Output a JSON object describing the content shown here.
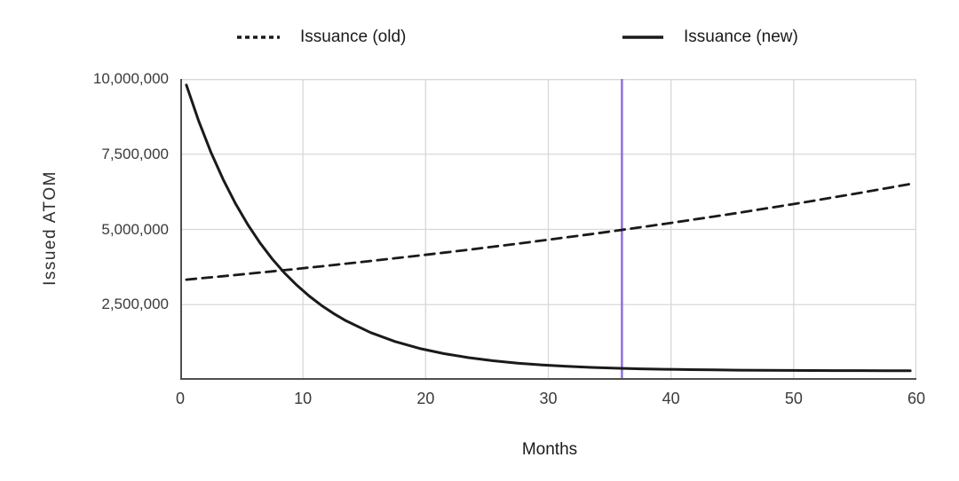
{
  "legend": {
    "items": [
      {
        "label": "Issuance (old)",
        "line_style": "dashed"
      },
      {
        "label": "Issuance (new)",
        "line_style": "solid"
      }
    ]
  },
  "axes": {
    "x_label": "Months",
    "y_label": "Issued ATOM",
    "x_ticks": [
      {
        "value": 0,
        "label": "0"
      },
      {
        "value": 10,
        "label": "10"
      },
      {
        "value": 20,
        "label": "20"
      },
      {
        "value": 30,
        "label": "30"
      },
      {
        "value": 40,
        "label": "40"
      },
      {
        "value": 50,
        "label": "50"
      },
      {
        "value": 60,
        "label": "60"
      }
    ],
    "y_ticks": [
      {
        "value": 2500000,
        "label": "2,500,000"
      },
      {
        "value": 5000000,
        "label": "5,000,000"
      },
      {
        "value": 7500000,
        "label": "7,500,000"
      },
      {
        "value": 10000000,
        "label": "10,000,000"
      }
    ]
  },
  "colors": {
    "series_line": "#1a1a1a",
    "grid": "#d8d8d8",
    "axis": "#4f4f4f",
    "marker_line": "#9070e0",
    "text": "#2e2e2e",
    "background": "#ffffff"
  },
  "chart_data": {
    "type": "line",
    "title": "",
    "xlabel": "Months",
    "ylabel": "Issued ATOM",
    "xlim": [
      0,
      60
    ],
    "ylim": [
      0,
      10000000
    ],
    "grid": true,
    "legend_position": "top",
    "x": [
      0.5,
      1.5,
      2.5,
      3.5,
      4.5,
      5.5,
      6.5,
      7.5,
      8.5,
      9.5,
      10.5,
      11.5,
      12.5,
      13.5,
      15.5,
      17.5,
      19.5,
      21.5,
      23.5,
      25.5,
      27.5,
      29.5,
      31.5,
      33.5,
      35.5,
      37.5,
      39.5,
      41.5,
      43.5,
      45.5,
      47.5,
      49.5,
      51.5,
      53.5,
      55.5,
      57.5,
      59.5
    ],
    "series": [
      {
        "name": "Issuance (old)",
        "style": "dashed",
        "values": [
          3330000,
          3368000,
          3407000,
          3445000,
          3485000,
          3525000,
          3565000,
          3606000,
          3647000,
          3688000,
          3731000,
          3773000,
          3816000,
          3860000,
          3949000,
          4040000,
          4132000,
          4227000,
          4325000,
          4424000,
          4526000,
          4630000,
          4736000,
          4845000,
          4957000,
          5071000,
          5187000,
          5306000,
          5428000,
          5553000,
          5681000,
          5812000,
          5945000,
          6082000,
          6222000,
          6365000,
          6511000
        ]
      },
      {
        "name": "Issuance (new)",
        "style": "solid",
        "values": [
          9800000,
          8609000,
          7567000,
          6655000,
          5858000,
          5161000,
          4551000,
          4018000,
          3552000,
          3144000,
          2787000,
          2476000,
          2203000,
          1964000,
          1573000,
          1274000,
          1045000,
          870000,
          736000,
          633000,
          555000,
          495000,
          449000,
          414000,
          387000,
          367000,
          351000,
          339000,
          330000,
          323000,
          317000,
          313000,
          310000,
          308000,
          306000,
          305000,
          304000
        ]
      }
    ],
    "vline": {
      "x": 36,
      "color": "#9070e0"
    }
  }
}
